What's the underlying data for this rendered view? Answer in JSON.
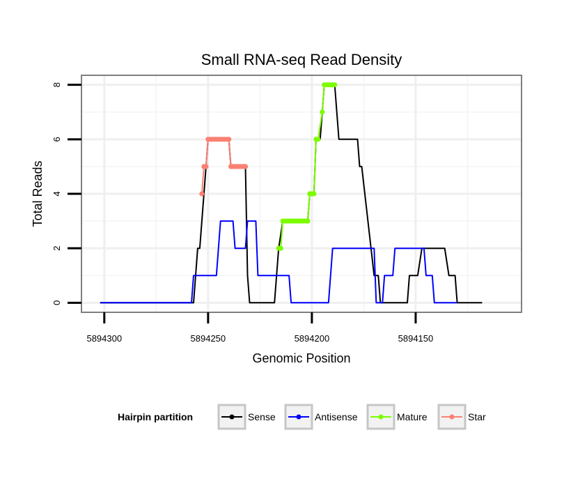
{
  "chart_data": {
    "type": "line",
    "title": "Small RNA-seq Read Density",
    "xlabel": "Genomic Position",
    "ylabel": "Total Reads",
    "xlim": [
      5894311,
      5894099
    ],
    "ylim": [
      -0.35,
      8.35
    ],
    "x_reversed": true,
    "x_ticks": [
      5894300,
      5894250,
      5894200,
      5894150
    ],
    "x_tick_labels": [
      "5894300",
      "5894250",
      "5894200",
      "5894150"
    ],
    "y_ticks": [
      0,
      2,
      4,
      6,
      8
    ],
    "y_tick_labels": [
      "0",
      "2",
      "4",
      "6",
      "8"
    ],
    "grid": true,
    "legend": {
      "title": "Hairpin partition",
      "position": "bottom",
      "entries": [
        {
          "name": "Sense",
          "color": "#000000"
        },
        {
          "name": "Antisense",
          "color": "#0000ff"
        },
        {
          "name": "Mature",
          "color": "#7cfc00"
        },
        {
          "name": "Star",
          "color": "#fa8072"
        }
      ]
    },
    "series": [
      {
        "name": "Sense",
        "color": "#000000",
        "points": [
          [
            5894302,
            0
          ],
          [
            5894257,
            0
          ],
          [
            5894255,
            2
          ],
          [
            5894254,
            2
          ],
          [
            5894252,
            4
          ],
          [
            5894251,
            5
          ],
          [
            5894250,
            6
          ],
          [
            5894240,
            6
          ],
          [
            5894239,
            5
          ],
          [
            5894232,
            5
          ],
          [
            5894231,
            1
          ],
          [
            5894230,
            0
          ],
          [
            5894218,
            0
          ],
          [
            5894216,
            2
          ],
          [
            5894214,
            3
          ],
          [
            5894202,
            3
          ],
          [
            5894201,
            4
          ],
          [
            5894199,
            4
          ],
          [
            5894198,
            6
          ],
          [
            5894196,
            6
          ],
          [
            5894195,
            7
          ],
          [
            5894194,
            8
          ],
          [
            5894189,
            8
          ],
          [
            5894187,
            6
          ],
          [
            5894178,
            6
          ],
          [
            5894177,
            5
          ],
          [
            5894176,
            5
          ],
          [
            5894170,
            1
          ],
          [
            5894168,
            1
          ],
          [
            5894167,
            0
          ],
          [
            5894154,
            0
          ],
          [
            5894153,
            1
          ],
          [
            5894149,
            1
          ],
          [
            5894147,
            2
          ],
          [
            5894136,
            2
          ],
          [
            5894134,
            1
          ],
          [
            5894131,
            1
          ],
          [
            5894130,
            0
          ],
          [
            5894118,
            0
          ]
        ]
      },
      {
        "name": "Antisense",
        "color": "#0000ff",
        "points": [
          [
            5894302,
            0
          ],
          [
            5894258,
            0
          ],
          [
            5894257,
            1
          ],
          [
            5894246,
            1
          ],
          [
            5894244,
            3
          ],
          [
            5894238,
            3
          ],
          [
            5894237,
            2
          ],
          [
            5894232,
            2
          ],
          [
            5894231,
            3
          ],
          [
            5894227,
            3
          ],
          [
            5894226,
            1
          ],
          [
            5894211,
            1
          ],
          [
            5894210,
            0
          ],
          [
            5894192,
            0
          ],
          [
            5894190,
            2
          ],
          [
            5894170,
            2
          ],
          [
            5894169,
            0
          ],
          [
            5894166,
            0
          ],
          [
            5894165,
            1
          ],
          [
            5894161,
            1
          ],
          [
            5894160,
            2
          ],
          [
            5894146,
            2
          ],
          [
            5894145,
            1
          ],
          [
            5894142,
            1
          ],
          [
            5894141,
            0
          ],
          [
            5894130,
            0
          ]
        ]
      },
      {
        "name": "Mature",
        "color": "#7cfc00",
        "points": [
          [
            5894216,
            2
          ],
          [
            5894215,
            2
          ],
          [
            5894214,
            3
          ],
          [
            5894213,
            3
          ],
          [
            5894212,
            3
          ],
          [
            5894211,
            3
          ],
          [
            5894210,
            3
          ],
          [
            5894209,
            3
          ],
          [
            5894208,
            3
          ],
          [
            5894207,
            3
          ],
          [
            5894206,
            3
          ],
          [
            5894205,
            3
          ],
          [
            5894204,
            3
          ],
          [
            5894203,
            3
          ],
          [
            5894202,
            3
          ],
          [
            5894201,
            4
          ],
          [
            5894200,
            4
          ],
          [
            5894199,
            4
          ],
          [
            5894198,
            6
          ],
          [
            5894197,
            6
          ],
          [
            5894195,
            7
          ],
          [
            5894194,
            8
          ],
          [
            5894193,
            8
          ],
          [
            5894192,
            8
          ],
          [
            5894191,
            8
          ],
          [
            5894190,
            8
          ],
          [
            5894189,
            8
          ]
        ]
      },
      {
        "name": "Star",
        "color": "#fa8072",
        "points": [
          [
            5894253,
            4
          ],
          [
            5894252,
            5
          ],
          [
            5894251,
            5
          ],
          [
            5894250,
            6
          ],
          [
            5894249,
            6
          ],
          [
            5894248,
            6
          ],
          [
            5894247,
            6
          ],
          [
            5894246,
            6
          ],
          [
            5894245,
            6
          ],
          [
            5894244,
            6
          ],
          [
            5894243,
            6
          ],
          [
            5894242,
            6
          ],
          [
            5894241,
            6
          ],
          [
            5894240,
            6
          ],
          [
            5894239,
            5
          ],
          [
            5894238,
            5
          ],
          [
            5894237,
            5
          ],
          [
            5894236,
            5
          ],
          [
            5894235,
            5
          ],
          [
            5894234,
            5
          ],
          [
            5894233,
            5
          ],
          [
            5894232,
            5
          ]
        ]
      }
    ]
  }
}
